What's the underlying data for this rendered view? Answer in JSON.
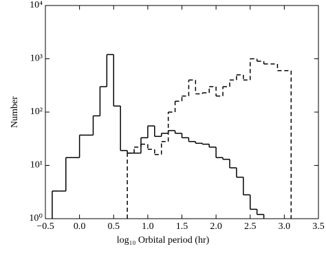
{
  "chart_data": {
    "type": "histogram",
    "x_label": "log₁₀ Orbital period (hr)",
    "y_label": "Number",
    "bins": [
      -0.4,
      -0.3,
      -0.2,
      -0.1,
      0.0,
      0.1,
      0.2,
      0.3,
      0.4,
      0.5,
      0.6,
      0.7,
      0.8,
      0.9,
      1.0,
      1.1,
      1.2,
      1.3,
      1.4,
      1.5,
      1.6,
      1.7,
      1.8,
      1.9,
      2.0,
      2.1,
      2.2,
      2.3,
      2.4,
      2.5,
      2.6,
      2.7,
      2.8,
      2.9,
      3.0,
      3.1
    ],
    "series": [
      {
        "style": "solid",
        "color": "#000000",
        "values": [
          3.3,
          3.3,
          14,
          14,
          37,
          37,
          85,
          300,
          1200,
          130,
          19,
          17,
          17,
          33,
          55,
          35,
          40,
          45,
          40,
          33,
          28,
          26,
          25,
          22,
          14,
          13,
          9,
          6,
          2.8,
          1.5,
          1.2,
          null,
          null,
          null,
          null
        ]
      },
      {
        "style": "dashed",
        "color": "#000000",
        "values": [
          null,
          null,
          null,
          null,
          null,
          null,
          null,
          null,
          null,
          null,
          null,
          17,
          22,
          25,
          20,
          16,
          28,
          100,
          160,
          200,
          400,
          220,
          230,
          300,
          200,
          300,
          400,
          500,
          400,
          1000,
          900,
          800,
          800,
          600,
          600
        ]
      }
    ],
    "log_y": true,
    "xlim": [
      -0.5,
      3.5
    ],
    "ylim": [
      1,
      10000
    ],
    "xticks": [
      {
        "value": -0.5,
        "label": "−0.5"
      },
      {
        "value": 0,
        "label": "0.0"
      },
      0.5,
      {
        "value": 1,
        "label": "1.0"
      },
      1.5,
      {
        "value": 2,
        "label": "2.0"
      },
      2.5,
      {
        "value": 3,
        "label": "3.0"
      },
      3.5
    ],
    "yticks": [
      {
        "value": 1,
        "label": "10⁰"
      },
      {
        "value": 10,
        "label": "10¹"
      },
      {
        "value": 100,
        "label": "10²"
      },
      {
        "value": 1000,
        "label": "10³"
      },
      {
        "value": 10000,
        "label": "10⁴"
      }
    ]
  }
}
